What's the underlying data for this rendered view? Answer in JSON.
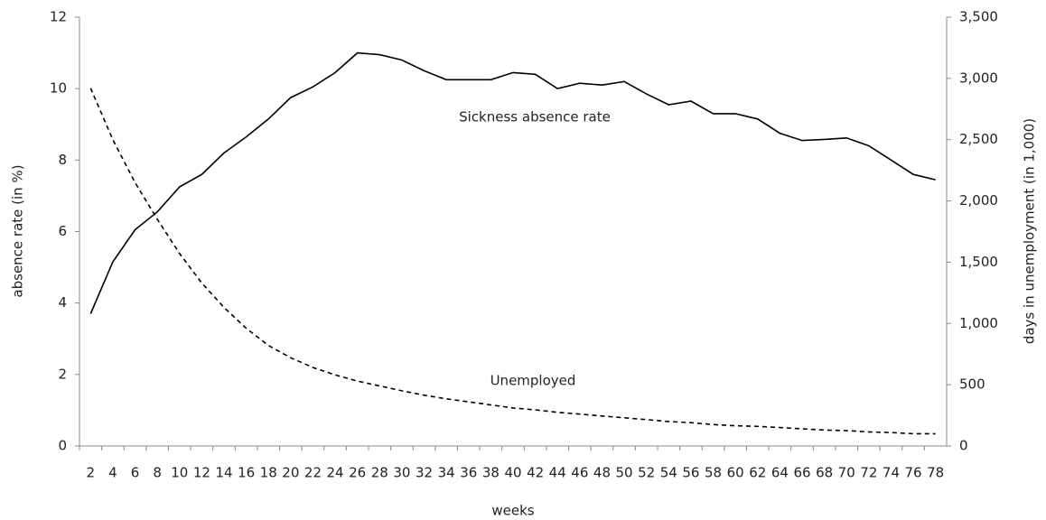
{
  "chart_data": {
    "type": "line",
    "x_label": "weeks",
    "y_label": "absence rate (in %)",
    "y2_label": "days in unemployment (in 1,000)",
    "categories": [
      2,
      4,
      6,
      8,
      10,
      12,
      14,
      16,
      18,
      20,
      22,
      24,
      26,
      28,
      30,
      32,
      34,
      36,
      38,
      40,
      42,
      44,
      46,
      48,
      50,
      52,
      54,
      56,
      58,
      60,
      62,
      64,
      66,
      68,
      70,
      72,
      74,
      76,
      78
    ],
    "ylim": [
      0,
      12
    ],
    "yticks": [
      0,
      2,
      4,
      6,
      8,
      10,
      12
    ],
    "y2lim": [
      0,
      3500
    ],
    "y2ticks": [
      0,
      500,
      {
        "value": 1000,
        "label": "1,000"
      },
      {
        "value": 1500,
        "label": "1,500"
      },
      {
        "value": 2000,
        "label": "2,000"
      },
      {
        "value": 2500,
        "label": "2,500"
      },
      {
        "value": 3000,
        "label": "3,000"
      },
      {
        "value": 3500,
        "label": "3,500"
      }
    ],
    "grid": false,
    "series": [
      {
        "name": "Sickness absence rate",
        "color": "#000000",
        "dash": "solid",
        "values": [
          3.7,
          5.15,
          6.05,
          6.55,
          7.25,
          7.6,
          8.2,
          8.65,
          9.15,
          9.75,
          10.05,
          10.45,
          11.0,
          10.95,
          10.8,
          10.5,
          10.25,
          10.25,
          10.25,
          10.45,
          10.4,
          10.0,
          10.15,
          10.1,
          10.2,
          9.85,
          9.55,
          9.65,
          9.3,
          9.3,
          9.15,
          8.75,
          8.55,
          8.58,
          8.62,
          8.4,
          8.0,
          7.6,
          7.45
        ]
      },
      {
        "name": "Unemployed",
        "color": "#000000",
        "dash": "dashed",
        "axis": "y2",
        "values": [
          2920,
          2500,
          2150,
          1850,
          1570,
          1330,
          1130,
          960,
          820,
          720,
          640,
          580,
          530,
          490,
          450,
          415,
          385,
          360,
          335,
          310,
          295,
          275,
          260,
          245,
          230,
          215,
          200,
          190,
          175,
          165,
          160,
          150,
          140,
          130,
          125,
          115,
          110,
          100,
          100
        ]
      }
    ]
  }
}
